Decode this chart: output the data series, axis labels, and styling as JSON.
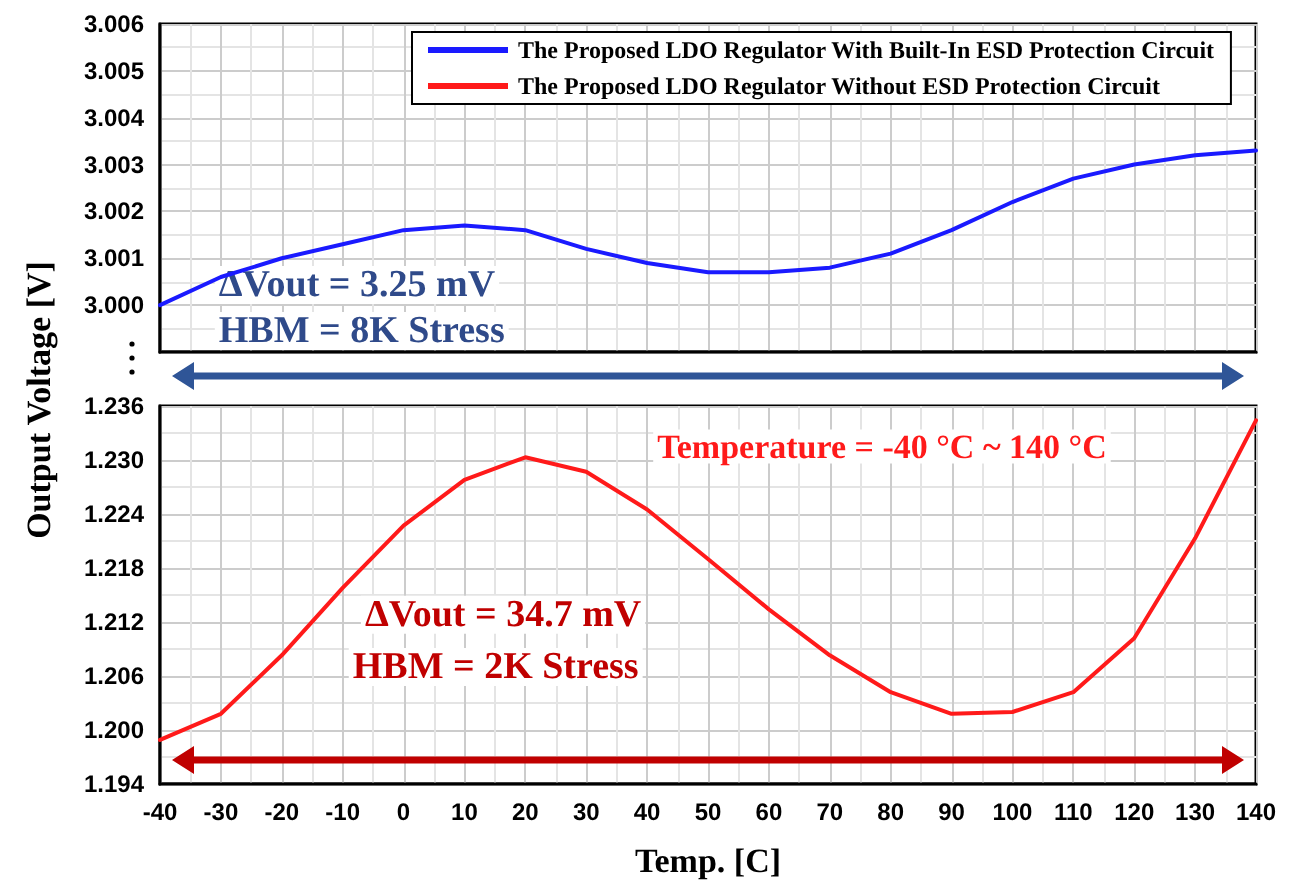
{
  "chart_data": [
    {
      "type": "line",
      "ylabel": "Output Voltage [V]",
      "x": [
        -40,
        -30,
        -20,
        -10,
        0,
        10,
        20,
        30,
        40,
        50,
        60,
        70,
        80,
        90,
        100,
        110,
        120,
        130,
        140
      ],
      "series": [
        {
          "name": "The Proposed LDO Regulator With Built-In ESD Protection Circuit",
          "color": "#1a1aff",
          "values": [
            3.0,
            3.0006,
            3.001,
            3.0013,
            3.0016,
            3.0017,
            3.0016,
            3.0012,
            3.0009,
            3.0007,
            3.0007,
            3.0008,
            3.0011,
            3.0016,
            3.0022,
            3.0027,
            3.003,
            3.0032,
            3.0033
          ]
        }
      ],
      "xlim": [
        -40,
        140
      ],
      "ylim": [
        2.999,
        3.006
      ],
      "yticks": [
        {
          "value": 3,
          "label": "3.000"
        },
        3.001,
        3.002,
        3.003,
        3.004,
        3.005,
        3.006
      ],
      "annotations": [
        "ΔVout = 3.25 mV",
        "HBM = 8K Stress"
      ],
      "grid": true,
      "legend": "top right",
      "tick_labels": "y",
      "marker": "none",
      "line_style": "solid"
    },
    {
      "type": "line",
      "xlabel": "Temp. [C]",
      "x": [
        -40,
        -30,
        -20,
        -10,
        0,
        10,
        20,
        30,
        40,
        50,
        60,
        70,
        80,
        90,
        100,
        110,
        120,
        130,
        140
      ],
      "series": [
        {
          "name": "The Proposed LDO Regulator Without ESD Protection Circuit",
          "color": "#ff1a1a",
          "values": [
            1.1989,
            1.2018,
            1.2083,
            1.2158,
            1.2227,
            1.2278,
            1.2303,
            1.2287,
            1.2245,
            1.219,
            1.2134,
            1.2083,
            1.2042,
            1.2018,
            1.202,
            1.2042,
            1.2102,
            1.2213,
            1.2344
          ]
        }
      ],
      "xlim": [
        -40,
        140
      ],
      "xticks": [
        -40,
        -30,
        -20,
        -10,
        0,
        10,
        20,
        30,
        40,
        50,
        60,
        70,
        80,
        90,
        100,
        110,
        120,
        130,
        140
      ],
      "ylim": [
        1.194,
        1.236
      ],
      "yticks": [
        1.194,
        {
          "value": 1.2,
          "label": "1.200"
        },
        1.206,
        1.212,
        1.218,
        1.224,
        {
          "value": 1.23,
          "label": "1.230"
        },
        1.236
      ],
      "annotations": [
        "Temperature = -40 °C ~ 140 °C",
        "ΔVout = 34.7 mV",
        "HBM = 2K Stress"
      ],
      "grid": true,
      "legend": "top right",
      "marker": "none",
      "line_style": "solid"
    }
  ]
}
